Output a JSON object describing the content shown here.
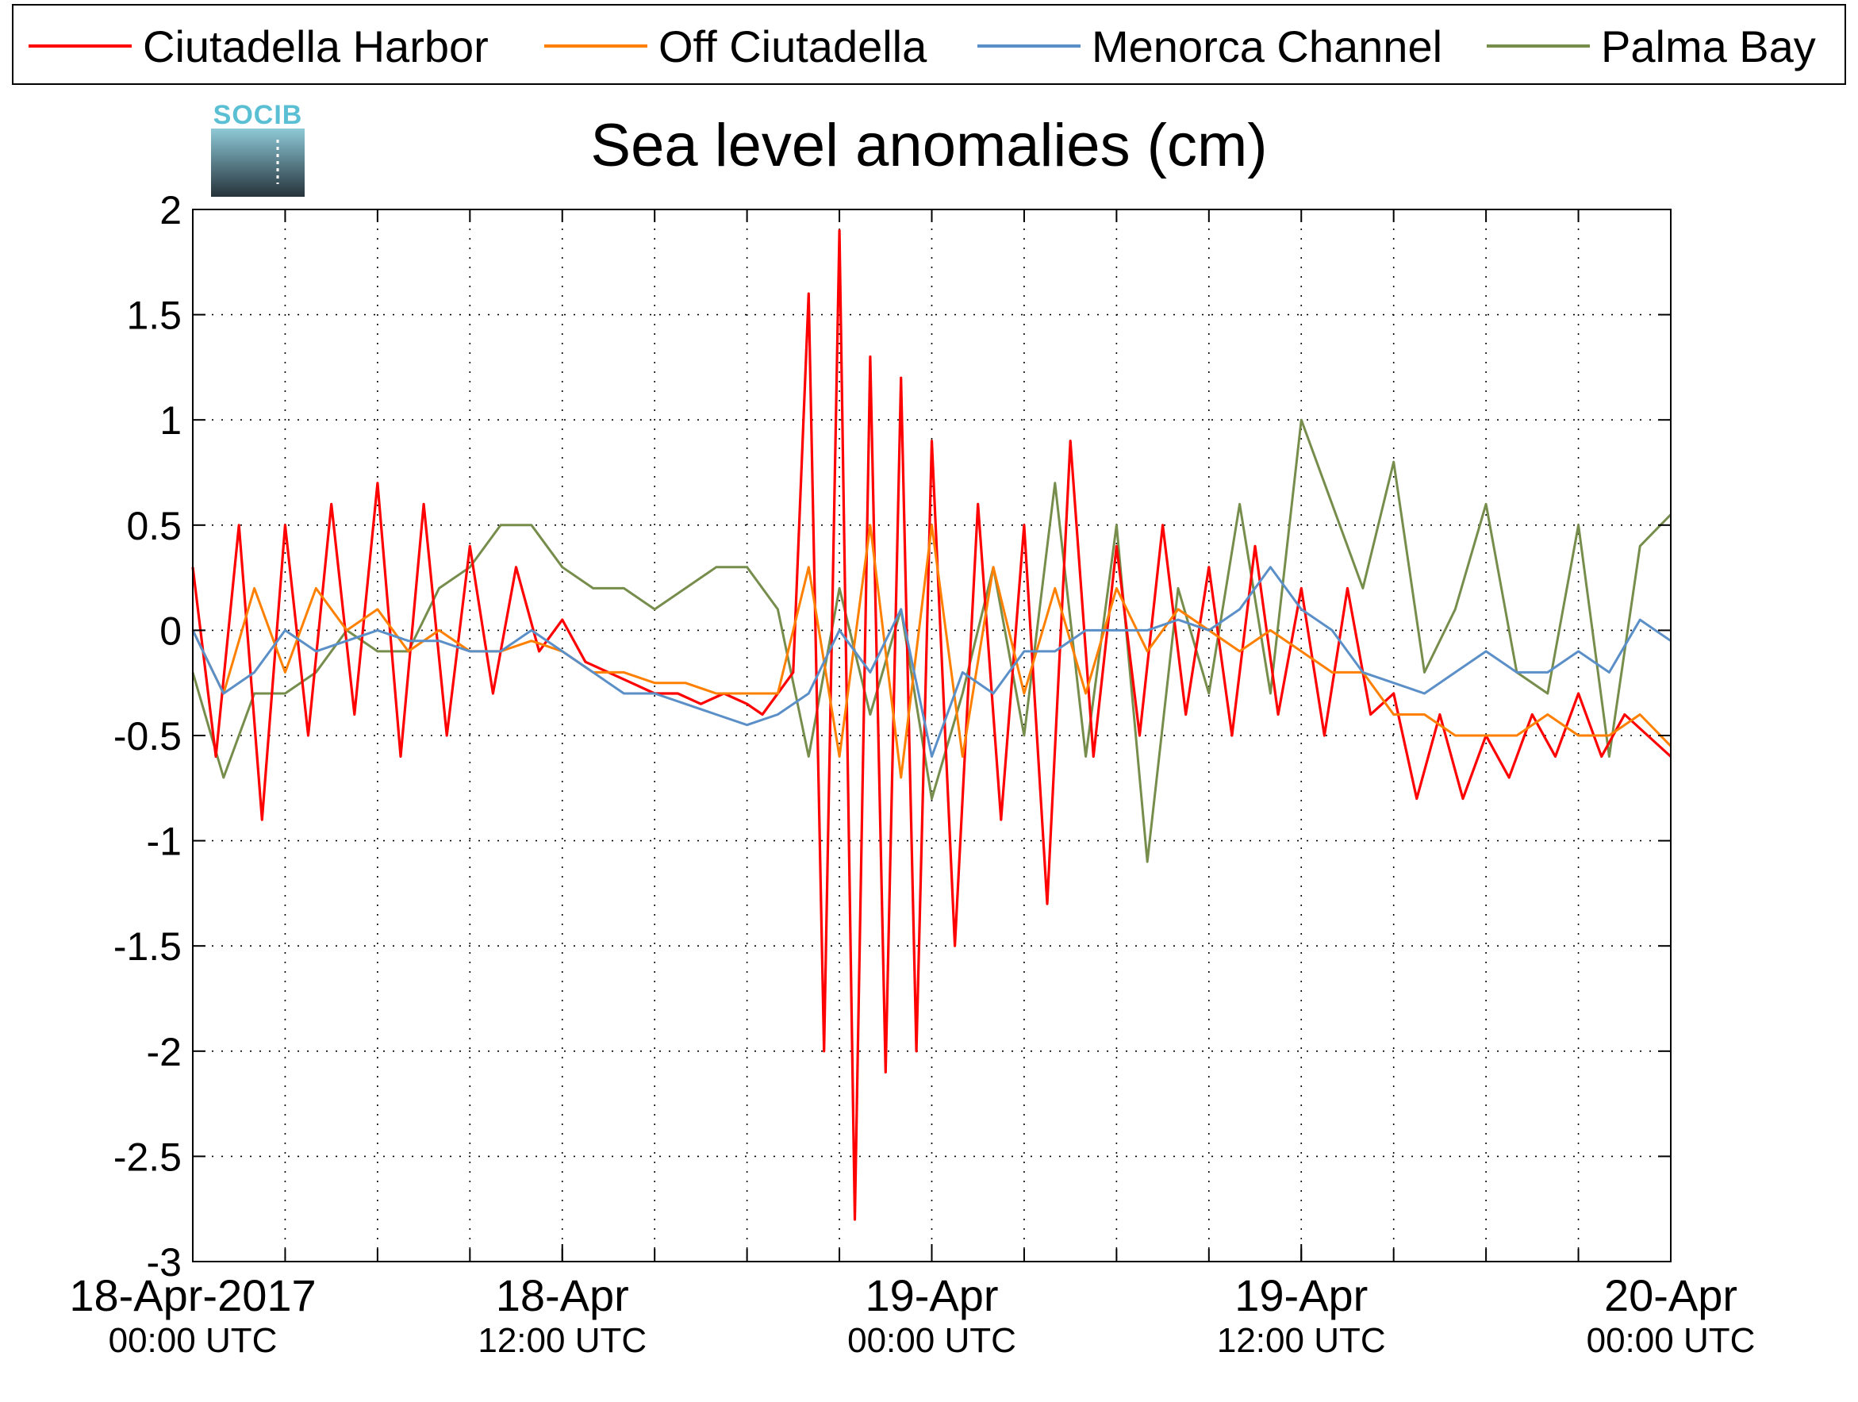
{
  "chart_data": {
    "type": "line",
    "title": "Sea level anomalies (cm)",
    "logo_text": "SOCIB",
    "ylim": [
      -3,
      2
    ],
    "xlim": [
      "2017-04-18T00:00Z",
      "2017-04-20T00:00Z"
    ],
    "grid": true,
    "legend_placement": "top",
    "y_ticks": [
      {
        "value": 2,
        "label": "2"
      },
      {
        "value": 1.5,
        "label": "1.5"
      },
      {
        "value": 1,
        "label": "1"
      },
      {
        "value": 0.5,
        "label": "0.5"
      },
      {
        "value": 0,
        "label": "0"
      },
      {
        "value": -0.5,
        "label": "-0.5"
      },
      {
        "value": -1,
        "label": "-1"
      },
      {
        "value": -1.5,
        "label": "-1.5"
      },
      {
        "value": -2,
        "label": "-2"
      },
      {
        "value": -2.5,
        "label": "-2.5"
      },
      {
        "value": -3,
        "label": "-3"
      }
    ],
    "x_ticks": [
      {
        "value": "2017-04-18T00:00Z",
        "label": "18-Apr-2017",
        "sublabel": "00:00 UTC"
      },
      {
        "value": "2017-04-18T12:00Z",
        "label": "18-Apr",
        "sublabel": "12:00 UTC"
      },
      {
        "value": "2017-04-19T00:00Z",
        "label": "19-Apr",
        "sublabel": "00:00 UTC"
      },
      {
        "value": "2017-04-19T12:00Z",
        "label": "19-Apr",
        "sublabel": "12:00 UTC"
      },
      {
        "value": "2017-04-20T00:00Z",
        "label": "20-Apr",
        "sublabel": "00:00 UTC"
      }
    ],
    "series": [
      {
        "name": "Ciutadella Harbor",
        "color": "#ff0000",
        "x": [
          "2017-04-18T00:00Z",
          "2017-04-18T00:45Z",
          "2017-04-18T01:30Z",
          "2017-04-18T02:15Z",
          "2017-04-18T03:00Z",
          "2017-04-18T03:45Z",
          "2017-04-18T04:30Z",
          "2017-04-18T05:15Z",
          "2017-04-18T06:00Z",
          "2017-04-18T06:45Z",
          "2017-04-18T07:30Z",
          "2017-04-18T08:15Z",
          "2017-04-18T09:00Z",
          "2017-04-18T09:45Z",
          "2017-04-18T10:30Z",
          "2017-04-18T11:15Z",
          "2017-04-18T12:00Z",
          "2017-04-18T12:45Z",
          "2017-04-18T13:30Z",
          "2017-04-18T14:15Z",
          "2017-04-18T15:00Z",
          "2017-04-18T15:45Z",
          "2017-04-18T16:30Z",
          "2017-04-18T17:15Z",
          "2017-04-18T18:00Z",
          "2017-04-18T18:30Z",
          "2017-04-18T19:00Z",
          "2017-04-18T19:30Z",
          "2017-04-18T20:00Z",
          "2017-04-18T20:30Z",
          "2017-04-18T21:00Z",
          "2017-04-18T21:30Z",
          "2017-04-18T22:00Z",
          "2017-04-18T22:30Z",
          "2017-04-18T23:00Z",
          "2017-04-18T23:30Z",
          "2017-04-19T00:00Z",
          "2017-04-19T00:45Z",
          "2017-04-19T01:30Z",
          "2017-04-19T02:15Z",
          "2017-04-19T03:00Z",
          "2017-04-19T03:45Z",
          "2017-04-19T04:30Z",
          "2017-04-19T05:15Z",
          "2017-04-19T06:00Z",
          "2017-04-19T06:45Z",
          "2017-04-19T07:30Z",
          "2017-04-19T08:15Z",
          "2017-04-19T09:00Z",
          "2017-04-19T09:45Z",
          "2017-04-19T10:30Z",
          "2017-04-19T11:15Z",
          "2017-04-19T12:00Z",
          "2017-04-19T12:45Z",
          "2017-04-19T13:30Z",
          "2017-04-19T14:15Z",
          "2017-04-19T15:00Z",
          "2017-04-19T15:45Z",
          "2017-04-19T16:30Z",
          "2017-04-19T17:15Z",
          "2017-04-19T18:00Z",
          "2017-04-19T18:45Z",
          "2017-04-19T19:30Z",
          "2017-04-19T20:15Z",
          "2017-04-19T21:00Z",
          "2017-04-19T21:45Z",
          "2017-04-19T22:30Z",
          "2017-04-19T23:15Z",
          "2017-04-20T00:00Z"
        ],
        "y": [
          0.3,
          -0.6,
          0.5,
          -0.9,
          0.5,
          -0.5,
          0.6,
          -0.4,
          0.7,
          -0.6,
          0.6,
          -0.5,
          0.4,
          -0.3,
          0.3,
          -0.1,
          0.05,
          -0.15,
          -0.2,
          -0.25,
          -0.3,
          -0.3,
          -0.35,
          -0.3,
          -0.35,
          -0.4,
          -0.3,
          -0.2,
          1.6,
          -2.0,
          1.9,
          -2.8,
          1.3,
          -2.1,
          1.2,
          -2.0,
          0.9,
          -1.5,
          0.6,
          -0.9,
          0.5,
          -1.3,
          0.9,
          -0.6,
          0.4,
          -0.5,
          0.5,
          -0.4,
          0.3,
          -0.5,
          0.4,
          -0.4,
          0.2,
          -0.5,
          0.2,
          -0.4,
          -0.3,
          -0.8,
          -0.4,
          -0.8,
          -0.5,
          -0.7,
          -0.4,
          -0.6,
          -0.3,
          -0.6,
          -0.4,
          -0.5,
          -0.6
        ]
      },
      {
        "name": "Off Ciutadella",
        "color": "#ff8000",
        "x": [
          "2017-04-18T00:00Z",
          "2017-04-18T01:00Z",
          "2017-04-18T02:00Z",
          "2017-04-18T03:00Z",
          "2017-04-18T04:00Z",
          "2017-04-18T05:00Z",
          "2017-04-18T06:00Z",
          "2017-04-18T07:00Z",
          "2017-04-18T08:00Z",
          "2017-04-18T09:00Z",
          "2017-04-18T10:00Z",
          "2017-04-18T11:00Z",
          "2017-04-18T12:00Z",
          "2017-04-18T13:00Z",
          "2017-04-18T14:00Z",
          "2017-04-18T15:00Z",
          "2017-04-18T16:00Z",
          "2017-04-18T17:00Z",
          "2017-04-18T18:00Z",
          "2017-04-18T19:00Z",
          "2017-04-18T20:00Z",
          "2017-04-18T21:00Z",
          "2017-04-18T22:00Z",
          "2017-04-18T23:00Z",
          "2017-04-19T00:00Z",
          "2017-04-19T01:00Z",
          "2017-04-19T02:00Z",
          "2017-04-19T03:00Z",
          "2017-04-19T04:00Z",
          "2017-04-19T05:00Z",
          "2017-04-19T06:00Z",
          "2017-04-19T07:00Z",
          "2017-04-19T08:00Z",
          "2017-04-19T09:00Z",
          "2017-04-19T10:00Z",
          "2017-04-19T11:00Z",
          "2017-04-19T12:00Z",
          "2017-04-19T13:00Z",
          "2017-04-19T14:00Z",
          "2017-04-19T15:00Z",
          "2017-04-19T16:00Z",
          "2017-04-19T17:00Z",
          "2017-04-19T18:00Z",
          "2017-04-19T19:00Z",
          "2017-04-19T20:00Z",
          "2017-04-19T21:00Z",
          "2017-04-19T22:00Z",
          "2017-04-19T23:00Z",
          "2017-04-20T00:00Z"
        ],
        "y": [
          0.0,
          -0.3,
          0.2,
          -0.2,
          0.2,
          0.0,
          0.1,
          -0.1,
          0.0,
          -0.1,
          -0.1,
          -0.05,
          -0.1,
          -0.2,
          -0.2,
          -0.25,
          -0.25,
          -0.3,
          -0.3,
          -0.3,
          0.3,
          -0.6,
          0.5,
          -0.7,
          0.5,
          -0.6,
          0.3,
          -0.3,
          0.2,
          -0.3,
          0.2,
          -0.1,
          0.1,
          0.0,
          -0.1,
          0.0,
          -0.1,
          -0.2,
          -0.2,
          -0.4,
          -0.4,
          -0.5,
          -0.5,
          -0.5,
          -0.4,
          -0.5,
          -0.5,
          -0.4,
          -0.55
        ]
      },
      {
        "name": "Menorca Channel",
        "color": "#5b8fc7",
        "x": [
          "2017-04-18T00:00Z",
          "2017-04-18T01:00Z",
          "2017-04-18T02:00Z",
          "2017-04-18T03:00Z",
          "2017-04-18T04:00Z",
          "2017-04-18T05:00Z",
          "2017-04-18T06:00Z",
          "2017-04-18T07:00Z",
          "2017-04-18T08:00Z",
          "2017-04-18T09:00Z",
          "2017-04-18T10:00Z",
          "2017-04-18T11:00Z",
          "2017-04-18T12:00Z",
          "2017-04-18T13:00Z",
          "2017-04-18T14:00Z",
          "2017-04-18T15:00Z",
          "2017-04-18T16:00Z",
          "2017-04-18T17:00Z",
          "2017-04-18T18:00Z",
          "2017-04-18T19:00Z",
          "2017-04-18T20:00Z",
          "2017-04-18T21:00Z",
          "2017-04-18T22:00Z",
          "2017-04-18T23:00Z",
          "2017-04-19T00:00Z",
          "2017-04-19T01:00Z",
          "2017-04-19T02:00Z",
          "2017-04-19T03:00Z",
          "2017-04-19T04:00Z",
          "2017-04-19T05:00Z",
          "2017-04-19T06:00Z",
          "2017-04-19T07:00Z",
          "2017-04-19T08:00Z",
          "2017-04-19T09:00Z",
          "2017-04-19T10:00Z",
          "2017-04-19T11:00Z",
          "2017-04-19T12:00Z",
          "2017-04-19T13:00Z",
          "2017-04-19T14:00Z",
          "2017-04-19T15:00Z",
          "2017-04-19T16:00Z",
          "2017-04-19T17:00Z",
          "2017-04-19T18:00Z",
          "2017-04-19T19:00Z",
          "2017-04-19T20:00Z",
          "2017-04-19T21:00Z",
          "2017-04-19T22:00Z",
          "2017-04-19T23:00Z",
          "2017-04-20T00:00Z"
        ],
        "y": [
          0.0,
          -0.3,
          -0.2,
          0.0,
          -0.1,
          -0.05,
          0.0,
          -0.05,
          -0.05,
          -0.1,
          -0.1,
          0.0,
          -0.1,
          -0.2,
          -0.3,
          -0.3,
          -0.35,
          -0.4,
          -0.45,
          -0.4,
          -0.3,
          0.0,
          -0.2,
          0.1,
          -0.6,
          -0.2,
          -0.3,
          -0.1,
          -0.1,
          0.0,
          0.0,
          0.0,
          0.05,
          0.0,
          0.1,
          0.3,
          0.1,
          0.0,
          -0.2,
          -0.25,
          -0.3,
          -0.2,
          -0.1,
          -0.2,
          -0.2,
          -0.1,
          -0.2,
          0.05,
          -0.05
        ]
      },
      {
        "name": "Palma Bay",
        "color": "#768d4c",
        "x": [
          "2017-04-18T00:00Z",
          "2017-04-18T01:00Z",
          "2017-04-18T02:00Z",
          "2017-04-18T03:00Z",
          "2017-04-18T04:00Z",
          "2017-04-18T05:00Z",
          "2017-04-18T06:00Z",
          "2017-04-18T07:00Z",
          "2017-04-18T08:00Z",
          "2017-04-18T09:00Z",
          "2017-04-18T10:00Z",
          "2017-04-18T11:00Z",
          "2017-04-18T12:00Z",
          "2017-04-18T13:00Z",
          "2017-04-18T14:00Z",
          "2017-04-18T15:00Z",
          "2017-04-18T16:00Z",
          "2017-04-18T17:00Z",
          "2017-04-18T18:00Z",
          "2017-04-18T19:00Z",
          "2017-04-18T20:00Z",
          "2017-04-18T21:00Z",
          "2017-04-18T22:00Z",
          "2017-04-18T23:00Z",
          "2017-04-19T00:00Z",
          "2017-04-19T01:00Z",
          "2017-04-19T02:00Z",
          "2017-04-19T03:00Z",
          "2017-04-19T04:00Z",
          "2017-04-19T05:00Z",
          "2017-04-19T06:00Z",
          "2017-04-19T07:00Z",
          "2017-04-19T08:00Z",
          "2017-04-19T09:00Z",
          "2017-04-19T10:00Z",
          "2017-04-19T11:00Z",
          "2017-04-19T12:00Z",
          "2017-04-19T13:00Z",
          "2017-04-19T14:00Z",
          "2017-04-19T15:00Z",
          "2017-04-19T16:00Z",
          "2017-04-19T17:00Z",
          "2017-04-19T18:00Z",
          "2017-04-19T19:00Z",
          "2017-04-19T20:00Z",
          "2017-04-19T21:00Z",
          "2017-04-19T22:00Z",
          "2017-04-19T23:00Z",
          "2017-04-20T00:00Z"
        ],
        "y": [
          -0.2,
          -0.7,
          -0.3,
          -0.3,
          -0.2,
          0.0,
          -0.1,
          -0.1,
          0.2,
          0.3,
          0.5,
          0.5,
          0.3,
          0.2,
          0.2,
          0.1,
          0.2,
          0.3,
          0.3,
          0.1,
          -0.6,
          0.2,
          -0.4,
          0.1,
          -0.8,
          -0.3,
          0.3,
          -0.5,
          0.7,
          -0.6,
          0.5,
          -1.1,
          0.2,
          -0.3,
          0.6,
          -0.3,
          1.0,
          0.6,
          0.2,
          0.8,
          -0.2,
          0.1,
          0.6,
          -0.2,
          -0.3,
          0.5,
          -0.6,
          0.4,
          0.55
        ]
      }
    ]
  }
}
